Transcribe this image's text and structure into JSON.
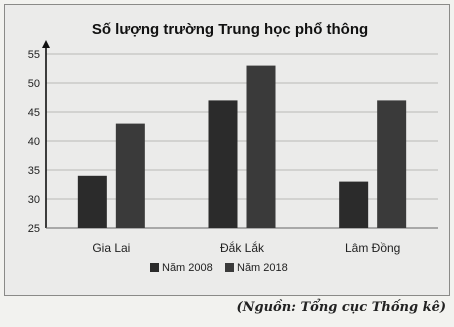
{
  "chart_data": {
    "type": "bar",
    "title": "Số lượng trường Trung học phổ thông",
    "categories": [
      "Gia Lai",
      "Đắk Lắk",
      "Lâm Đồng"
    ],
    "series": [
      {
        "name": "Năm 2008",
        "values": [
          34,
          47,
          33
        ],
        "color": "#2b2b2b"
      },
      {
        "name": "Năm 2018",
        "values": [
          43,
          53,
          47
        ],
        "color": "#3a3a3a"
      }
    ],
    "ylim": [
      25,
      55
    ],
    "yticks": [
      25,
      30,
      35,
      40,
      45,
      50,
      55
    ],
    "grid": true,
    "legend_position": "bottom",
    "xlabel": "",
    "ylabel": ""
  },
  "source_prefix": "(Nguồn:",
  "source_text": " Tổng cục Thống kê)"
}
